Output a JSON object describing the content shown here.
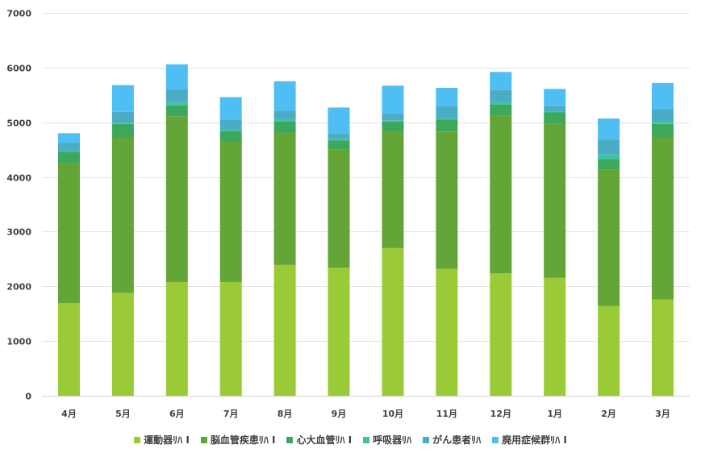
{
  "chart_data": {
    "type": "bar",
    "stacked": true,
    "title": "",
    "xlabel": "",
    "ylabel": "",
    "ylim": [
      0,
      7000
    ],
    "yticks": [
      0,
      1000,
      2000,
      3000,
      4000,
      5000,
      6000,
      7000
    ],
    "grid": true,
    "legend_position": "bottom",
    "categories": [
      "4月",
      "5月",
      "6月",
      "7月",
      "8月",
      "9月",
      "10月",
      "11月",
      "12月",
      "1月",
      "2月",
      "3月"
    ],
    "series": [
      {
        "name": "運動器ﾘﾊ Ⅰ",
        "color": "#9acb37",
        "values": [
          1690,
          1880,
          2080,
          2080,
          2390,
          2340,
          2700,
          2320,
          2240,
          2160,
          1640,
          1760
        ]
      },
      {
        "name": "脳血管疾患ﾘﾊ Ⅰ",
        "color": "#63a537",
        "values": [
          2560,
          2850,
          3030,
          2570,
          2420,
          2160,
          2120,
          2510,
          2880,
          2820,
          2500,
          2970
        ]
      },
      {
        "name": "心大血管ﾘﾊ Ⅰ",
        "color": "#3da85c",
        "values": [
          210,
          240,
          200,
          190,
          210,
          170,
          190,
          220,
          200,
          200,
          190,
          240
        ]
      },
      {
        "name": "呼吸器ﾘﾊ",
        "color": "#3dc5a0",
        "values": [
          20,
          20,
          50,
          30,
          40,
          20,
          20,
          20,
          50,
          20,
          80,
          40
        ]
      },
      {
        "name": "がん患者ﾘﾊ",
        "color": "#4bacc6",
        "values": [
          140,
          200,
          240,
          180,
          150,
          100,
          120,
          220,
          220,
          100,
          280,
          230
        ]
      },
      {
        "name": "廃用症候群ﾘﾊ Ⅰ",
        "color": "#4fbef2",
        "values": [
          180,
          490,
          460,
          410,
          540,
          480,
          520,
          340,
          330,
          310,
          380,
          480
        ]
      }
    ]
  }
}
